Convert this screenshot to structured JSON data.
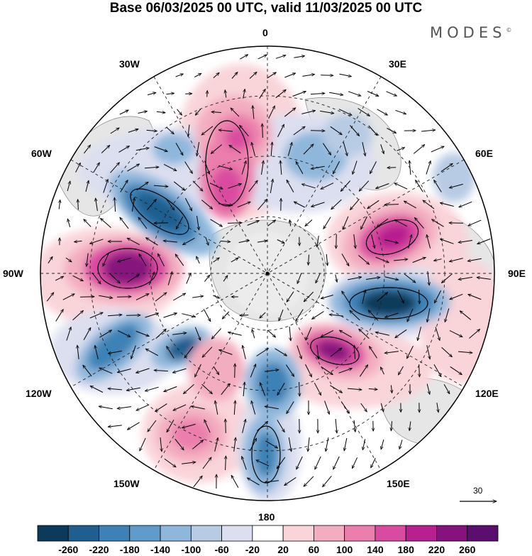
{
  "title": "Base 06/03/2025 00 UTC, valid 11/03/2025 00 UTC",
  "brand": {
    "name": "MODES",
    "mark": "©"
  },
  "longitude_labels": {
    "lon_0": "0",
    "lon_30e": "30E",
    "lon_60e": "60E",
    "lon_90e": "90E",
    "lon_120e": "120E",
    "lon_150e": "150E",
    "lon_180": "180",
    "lon_150w": "150W",
    "lon_120w": "120W",
    "lon_90w": "90W",
    "lon_60w": "60W",
    "lon_30w": "30W"
  },
  "reference_vector": {
    "label": "30"
  },
  "colorbar": {
    "levels": [
      "-260",
      "-220",
      "-180",
      "-140",
      "-100",
      "-60",
      "-20",
      "20",
      "60",
      "100",
      "140",
      "180",
      "220",
      "260"
    ],
    "colors": [
      "#0d3a5a",
      "#1f5f8f",
      "#3d82b6",
      "#5f9ccb",
      "#8fb7dc",
      "#b8cbe4",
      "#dcdff0",
      "#ffffff",
      "#f9d4d9",
      "#f3adc0",
      "#eb7eac",
      "#d94ba0",
      "#b81f8f",
      "#86127e",
      "#5a0f6e"
    ]
  },
  "map_data": {
    "projection": "south polar stereographic",
    "anomalies": [
      {
        "sign": "positive",
        "strength": 4,
        "color": "#b81f8f"
      },
      {
        "sign": "negative",
        "strength": 4,
        "color": "#1f5f8f"
      }
    ]
  }
}
